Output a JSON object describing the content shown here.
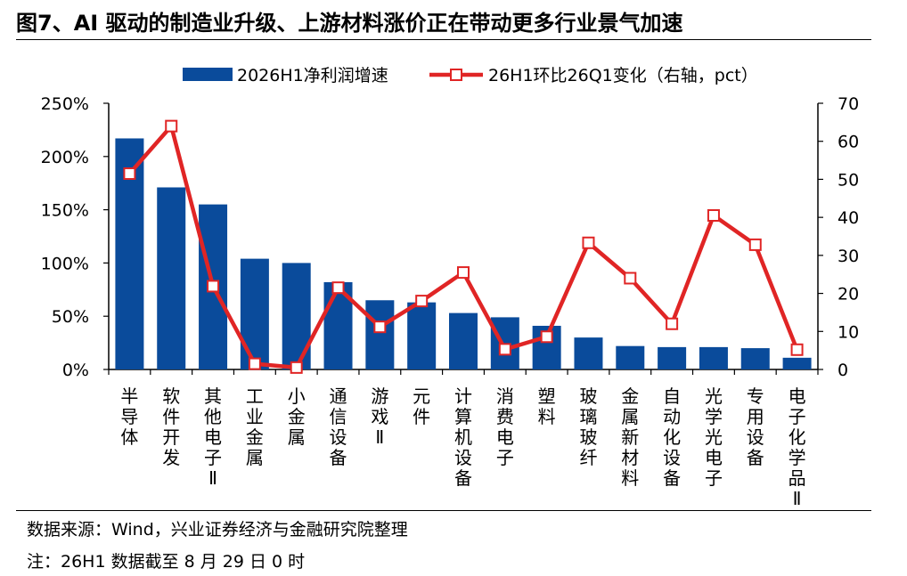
{
  "title": "图7、AI 驱动的制造业升级、上游材料涨价正在带动更多行业景气加速",
  "source": "数据来源：Wind，兴业证券经济与金融研究院整理",
  "note": "注：26H1 数据截至 8 月 29 日 0 时",
  "colors": {
    "bar": "#0a4b9b",
    "line": "#e02525",
    "marker_fill": "#ffffff"
  },
  "chart_data": {
    "type": "bar",
    "categories": [
      "半导体",
      "软件开发",
      "其他电子Ⅱ",
      "工业金属",
      "小金属",
      "通信设备",
      "游戏Ⅱ",
      "元件",
      "计算机设备",
      "消费电子",
      "塑料",
      "玻璃玻纤",
      "金属新材料",
      "自动化设备",
      "光学光电子",
      "专用设备",
      "电子化学品Ⅱ"
    ],
    "series": [
      {
        "name": "2026H1净利润增速",
        "type": "bar",
        "axis": "left",
        "values": [
          2.17,
          1.71,
          1.55,
          1.04,
          1.0,
          0.82,
          0.65,
          0.63,
          0.53,
          0.49,
          0.41,
          0.3,
          0.22,
          0.21,
          0.21,
          0.2,
          0.11
        ]
      },
      {
        "name": "26H1环比26Q1变化（右轴，pct）",
        "type": "line",
        "axis": "right",
        "values": [
          51.5,
          64.0,
          21.9,
          1.5,
          0.5,
          21.5,
          11.2,
          18.0,
          25.5,
          5.3,
          8.6,
          33.3,
          24.0,
          12.0,
          40.5,
          32.8,
          5.2
        ]
      }
    ],
    "left_axis": {
      "min": 0,
      "max": 2.5,
      "ticks": [
        0,
        0.5,
        1.0,
        1.5,
        2.0,
        2.5
      ],
      "tick_labels": [
        "0%",
        "50%",
        "100%",
        "150%",
        "200%",
        "250%"
      ]
    },
    "right_axis": {
      "min": 0,
      "max": 70,
      "ticks": [
        0,
        10,
        20,
        30,
        40,
        50,
        60,
        70
      ],
      "tick_labels": [
        "0",
        "10",
        "20",
        "30",
        "40",
        "50",
        "60",
        "70"
      ]
    },
    "grid": false,
    "legend": "top-center"
  }
}
